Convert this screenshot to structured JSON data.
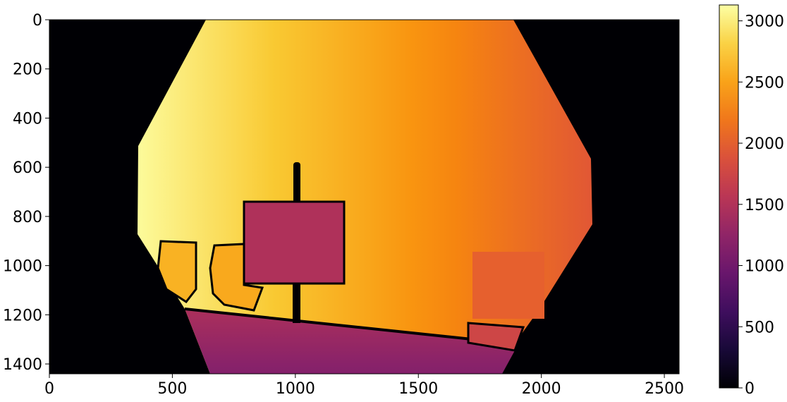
{
  "chart_data": {
    "type": "heatmap",
    "title": "",
    "xlabel": "",
    "ylabel": "",
    "x_range": [
      0,
      2560
    ],
    "y_range": [
      0,
      1440
    ],
    "y_inverted": true,
    "x_ticks": [
      0,
      500,
      1000,
      1500,
      2000,
      2500
    ],
    "y_ticks": [
      0,
      200,
      400,
      600,
      800,
      1000,
      1200,
      1400
    ],
    "colormap": "inferno",
    "colorbar": {
      "range": [
        0,
        3130
      ],
      "ticks": [
        0,
        500,
        1000,
        1500,
        2000,
        2500,
        3000
      ]
    },
    "background_value": 0,
    "scene": {
      "far_plane_left_value": 3100,
      "far_plane_right_value": 1950,
      "floor_near_value": 1150,
      "floor_far_value": 1450,
      "sign_board_value": 1480,
      "left_chair_value": 2600,
      "right_panel_value": 2020,
      "low_box_value": 1750
    }
  }
}
